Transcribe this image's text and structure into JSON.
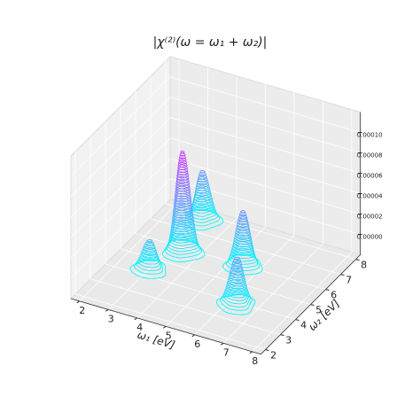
{
  "chart_data": {
    "type": "contour3d",
    "title": "|χ⁽²⁾(ω = ω₁ + ω₂)|",
    "xlabel": "ω₁ [eV]",
    "ylabel": "ω₂ [eV]",
    "xlim": [
      1.7,
      8.3
    ],
    "ylim": [
      1.7,
      8.3
    ],
    "zlim": [
      -2e-05,
      0.00012
    ],
    "xticks": [
      2,
      3,
      4,
      5,
      6,
      7,
      8
    ],
    "yticks": [
      2,
      3,
      4,
      5,
      6,
      7,
      8
    ],
    "zticks": [
      {
        "value": 0,
        "label": "0.00000"
      },
      {
        "value": 2e-05,
        "label": "0.00002"
      },
      {
        "value": 4e-05,
        "label": "0.00004"
      },
      {
        "value": 6e-05,
        "label": "0.00006"
      },
      {
        "value": 8e-05,
        "label": "0.00008"
      },
      {
        "value": 0.0001,
        "label": "0.00010"
      }
    ],
    "colormap": "cool",
    "grid": true,
    "peaks": [
      {
        "x": 3.7,
        "y": 6.6,
        "z": 5e-05
      },
      {
        "x": 4.0,
        "y": 4.7,
        "z": 0.0001
      },
      {
        "x": 6.0,
        "y": 4.9,
        "z": 5.5e-05
      },
      {
        "x": 3.6,
        "y": 3.3,
        "z": 3e-05
      },
      {
        "x": 6.9,
        "y": 2.8,
        "z": 4.8e-05
      }
    ]
  }
}
